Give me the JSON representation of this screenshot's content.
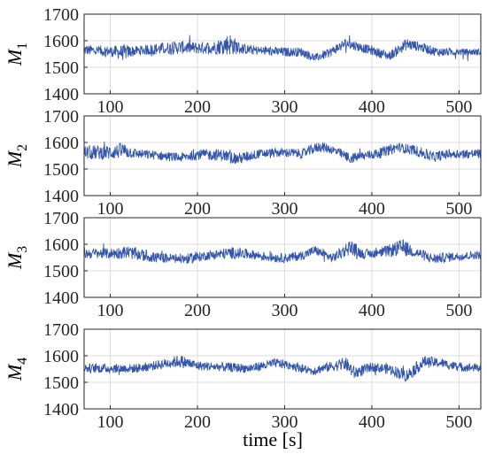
{
  "chart_data": [
    {
      "type": "line",
      "ylabel_main": "M",
      "ylabel_sub": "1",
      "xlim": [
        70,
        525
      ],
      "ylim": [
        1400,
        1700
      ],
      "xticks": [
        100,
        200,
        300,
        400,
        500
      ],
      "yticks": [
        1400,
        1500,
        1600,
        1700
      ],
      "grid": true,
      "series": [
        {
          "color": "#3355aa",
          "envelope": [
            [
              70,
              1545,
              1585
            ],
            [
              100,
              1540,
              1580
            ],
            [
              115,
              1525,
              1585
            ],
            [
              130,
              1545,
              1580
            ],
            [
              150,
              1545,
              1590
            ],
            [
              180,
              1550,
              1600
            ],
            [
              200,
              1550,
              1595
            ],
            [
              220,
              1550,
              1600
            ],
            [
              237,
              1545,
              1630
            ],
            [
              250,
              1550,
              1590
            ],
            [
              270,
              1545,
              1580
            ],
            [
              300,
              1540,
              1575
            ],
            [
              320,
              1540,
              1575
            ],
            [
              335,
              1520,
              1550
            ],
            [
              350,
              1535,
              1570
            ],
            [
              370,
              1570,
              1610
            ],
            [
              385,
              1560,
              1595
            ],
            [
              400,
              1545,
              1580
            ],
            [
              420,
              1525,
              1560
            ],
            [
              440,
              1565,
              1610
            ],
            [
              455,
              1560,
              1595
            ],
            [
              475,
              1540,
              1575
            ],
            [
              500,
              1545,
              1570
            ],
            [
              525,
              1545,
              1570
            ]
          ]
        }
      ]
    },
    {
      "type": "line",
      "ylabel_main": "M",
      "ylabel_sub": "2",
      "xlim": [
        70,
        525
      ],
      "ylim": [
        1400,
        1700
      ],
      "xticks": [
        100,
        200,
        300,
        400,
        500
      ],
      "yticks": [
        1400,
        1500,
        1600,
        1700
      ],
      "grid": true,
      "series": [
        {
          "color": "#3355aa",
          "envelope": [
            [
              70,
              1535,
              1590
            ],
            [
              100,
              1535,
              1590
            ],
            [
              115,
              1540,
              1600
            ],
            [
              130,
              1540,
              1575
            ],
            [
              150,
              1535,
              1570
            ],
            [
              180,
              1525,
              1560
            ],
            [
              200,
              1535,
              1575
            ],
            [
              230,
              1530,
              1575
            ],
            [
              245,
              1515,
              1560
            ],
            [
              270,
              1540,
              1575
            ],
            [
              300,
              1545,
              1580
            ],
            [
              320,
              1540,
              1575
            ],
            [
              340,
              1565,
              1605
            ],
            [
              355,
              1555,
              1590
            ],
            [
              375,
              1520,
              1560
            ],
            [
              395,
              1535,
              1570
            ],
            [
              410,
              1540,
              1580
            ],
            [
              430,
              1565,
              1600
            ],
            [
              450,
              1550,
              1590
            ],
            [
              470,
              1525,
              1565
            ],
            [
              490,
              1540,
              1575
            ],
            [
              525,
              1540,
              1575
            ]
          ]
        }
      ]
    },
    {
      "type": "line",
      "ylabel_main": "M",
      "ylabel_sub": "3",
      "xlim": [
        70,
        525
      ],
      "ylim": [
        1400,
        1700
      ],
      "xticks": [
        100,
        200,
        300,
        400,
        500
      ],
      "yticks": [
        1400,
        1500,
        1600,
        1700
      ],
      "grid": true,
      "series": [
        {
          "color": "#3355aa",
          "envelope": [
            [
              70,
              1545,
              1585
            ],
            [
              100,
              1545,
              1585
            ],
            [
              120,
              1545,
              1595
            ],
            [
              150,
              1530,
              1570
            ],
            [
              170,
              1530,
              1565
            ],
            [
              190,
              1525,
              1565
            ],
            [
              210,
              1540,
              1575
            ],
            [
              240,
              1545,
              1590
            ],
            [
              260,
              1545,
              1580
            ],
            [
              280,
              1535,
              1570
            ],
            [
              300,
              1530,
              1565
            ],
            [
              320,
              1540,
              1575
            ],
            [
              335,
              1560,
              1595
            ],
            [
              355,
              1530,
              1565
            ],
            [
              375,
              1560,
              1620
            ],
            [
              390,
              1545,
              1580
            ],
            [
              410,
              1550,
              1585
            ],
            [
              435,
              1555,
              1620
            ],
            [
              450,
              1550,
              1590
            ],
            [
              470,
              1525,
              1565
            ],
            [
              490,
              1535,
              1570
            ],
            [
              525,
              1545,
              1575
            ]
          ]
        }
      ]
    },
    {
      "type": "line",
      "ylabel_main": "M",
      "ylabel_sub": "4",
      "xlim": [
        70,
        525
      ],
      "ylim": [
        1400,
        1700
      ],
      "xticks": [
        100,
        200,
        300,
        400,
        500
      ],
      "yticks": [
        1400,
        1500,
        1600,
        1700
      ],
      "grid": true,
      "series": [
        {
          "color": "#3355aa",
          "envelope": [
            [
              70,
              1535,
              1570
            ],
            [
              100,
              1535,
              1570
            ],
            [
              130,
              1535,
              1570
            ],
            [
              150,
              1545,
              1580
            ],
            [
              170,
              1555,
              1595
            ],
            [
              180,
              1555,
              1605
            ],
            [
              200,
              1545,
              1580
            ],
            [
              230,
              1540,
              1575
            ],
            [
              260,
              1535,
              1570
            ],
            [
              290,
              1555,
              1590
            ],
            [
              310,
              1545,
              1580
            ],
            [
              330,
              1525,
              1560
            ],
            [
              350,
              1540,
              1575
            ],
            [
              370,
              1545,
              1595
            ],
            [
              380,
              1510,
              1560
            ],
            [
              400,
              1540,
              1575
            ],
            [
              420,
              1530,
              1570
            ],
            [
              440,
              1500,
              1550
            ],
            [
              460,
              1555,
              1600
            ],
            [
              480,
              1555,
              1590
            ],
            [
              500,
              1540,
              1575
            ],
            [
              525,
              1540,
              1570
            ]
          ]
        }
      ]
    }
  ],
  "xlabel": "time [s]"
}
